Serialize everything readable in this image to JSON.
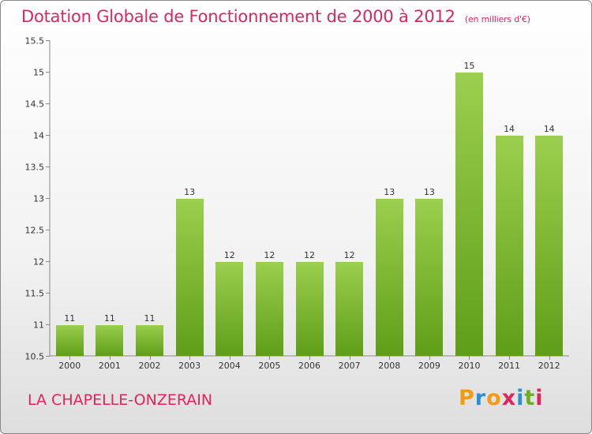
{
  "chart_data": {
    "type": "bar",
    "title": "Dotation Globale de Fonctionnement de 2000 à 2012",
    "unit": "(en milliers d'€)",
    "categories": [
      "2000",
      "2001",
      "2002",
      "2003",
      "2004",
      "2005",
      "2006",
      "2007",
      "2008",
      "2009",
      "2010",
      "2011",
      "2012"
    ],
    "values": [
      11,
      11,
      11,
      13,
      12,
      12,
      12,
      12,
      13,
      13,
      15,
      14,
      14
    ],
    "value_labels": [
      "11",
      "11",
      "11",
      "13",
      "12",
      "12",
      "12",
      "12",
      "13",
      "13",
      "15",
      "14",
      "14"
    ],
    "ylim": [
      10.5,
      15.5
    ],
    "yticks": [
      10.5,
      11,
      11.5,
      12,
      12.5,
      13,
      13.5,
      14,
      14.5,
      15,
      15.5
    ],
    "ytick_labels": [
      "10.5",
      "11",
      "11.5",
      "12",
      "12.5",
      "13",
      "13.5",
      "14",
      "14.5",
      "15",
      "15.5"
    ],
    "xlabel": "",
    "ylabel": "",
    "grid": false,
    "bar_color_top": "#9ccf4f",
    "bar_color_bottom": "#5f9e18"
  },
  "place_name": "LA CHAPELLE-ONZERAIN",
  "logo": {
    "letters": [
      "P",
      "r",
      "o",
      "x",
      "i",
      "t",
      "i"
    ],
    "colors": [
      "#f39c12",
      "#2a8fd6",
      "#f39c12",
      "#e0245e",
      "#2a8fd6",
      "#6ab023",
      "#e0245e"
    ]
  },
  "colors": {
    "accent": "#e0245e"
  }
}
